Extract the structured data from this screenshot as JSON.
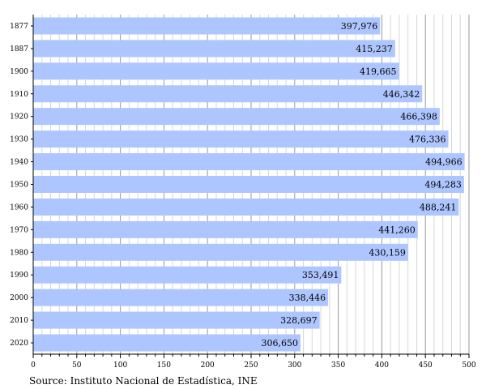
{
  "chart_data": {
    "type": "bar",
    "orientation": "horizontal",
    "categories": [
      "1877",
      "1887",
      "1900",
      "1910",
      "1920",
      "1930",
      "1940",
      "1950",
      "1960",
      "1970",
      "1980",
      "1990",
      "2000",
      "2010",
      "2020"
    ],
    "values": [
      397976,
      415237,
      419665,
      446342,
      466398,
      476336,
      494966,
      494283,
      488241,
      441260,
      430159,
      353491,
      338446,
      328697,
      306650
    ],
    "value_labels": [
      "397,976",
      "415,237",
      "419,665",
      "446,342",
      "466,398",
      "476,336",
      "494,966",
      "494,283",
      "488,241",
      "441,260",
      "430,159",
      "353,491",
      "338,446",
      "328,697",
      "306,650"
    ],
    "x_ticks": [
      "0",
      "50",
      "100",
      "150",
      "200",
      "250",
      "300",
      "350",
      "400",
      "450",
      "500"
    ],
    "x_tick_unit": 1000,
    "xlim": [
      0,
      500000
    ],
    "grid": "vertical",
    "bar_color": "#aec6ff",
    "source": "Source: Instituto Nacional de Estadística, INE"
  }
}
